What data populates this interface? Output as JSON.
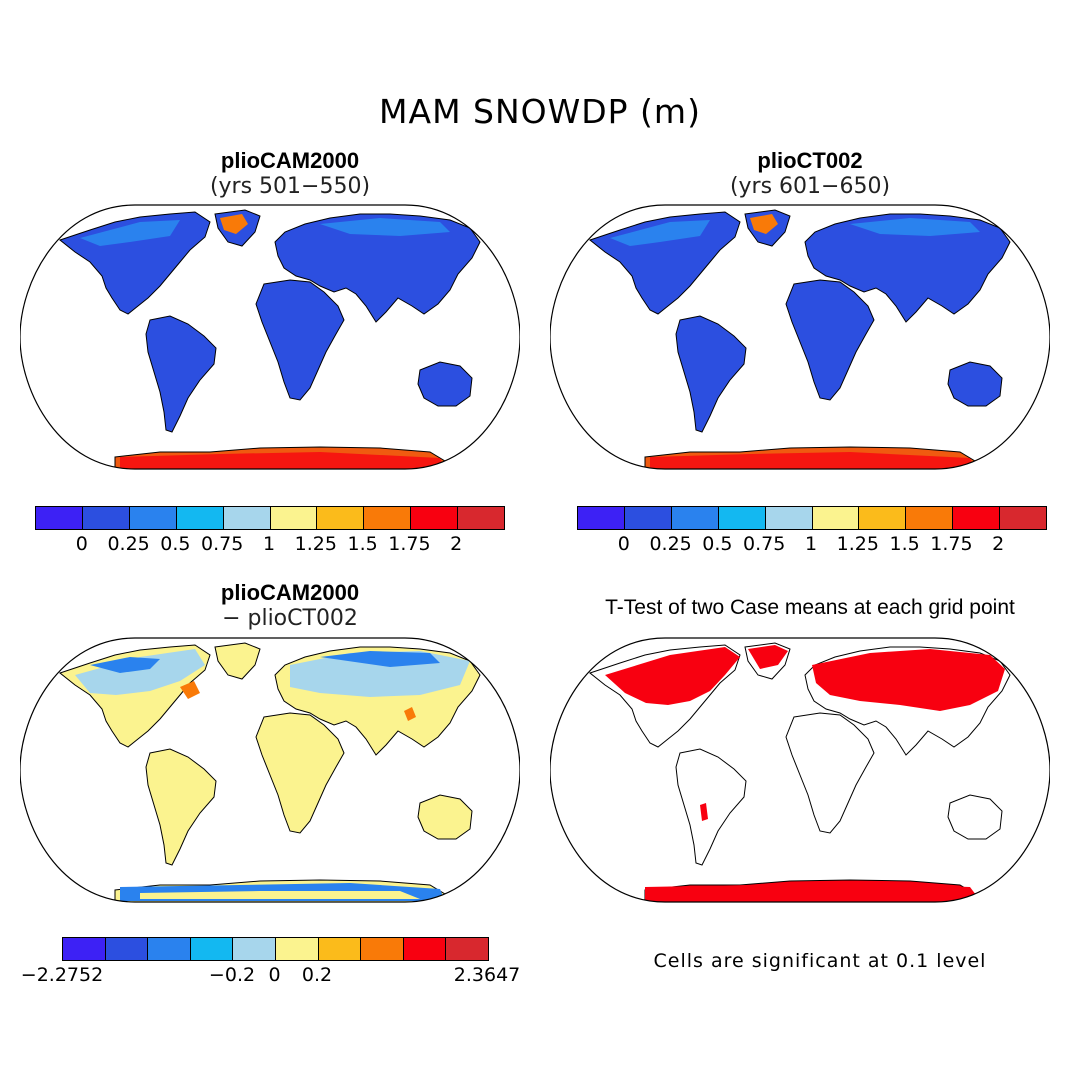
{
  "title": "MAM SNOWDP (m)",
  "panels": [
    {
      "id": "p1",
      "title": "plioCAM2000",
      "subtitle": "(yrs 501−550)",
      "palette": "abs"
    },
    {
      "id": "p2",
      "title": "plioCT002",
      "subtitle": "(yrs 601−650)",
      "palette": "abs"
    },
    {
      "id": "p3",
      "title": "plioCAM2000",
      "subtitle": "− plioCT002",
      "palette": "diff"
    },
    {
      "id": "p4",
      "title": "T-Test of two Case means at each grid point",
      "subtitle": "",
      "palette": "ttest"
    }
  ],
  "colorbar_colors": [
    "#3d21f5",
    "#2c4fe0",
    "#2a82ee",
    "#13b8f1",
    "#a7d6ec",
    "#fbf38f",
    "#fbbb1b",
    "#f97a08",
    "#f80010",
    "#d8282e"
  ],
  "colorbar_top": {
    "ticks": [
      "0",
      "0.25",
      "0.5",
      "0.75",
      "1",
      "1.25",
      "1.5",
      "1.75",
      "2"
    ]
  },
  "colorbar_bottom": {
    "ticks": [
      "−2.2752",
      "−0.2",
      "0",
      "0.2",
      "2.3647"
    ]
  },
  "note": "Cells are significant at 0.1 level"
}
